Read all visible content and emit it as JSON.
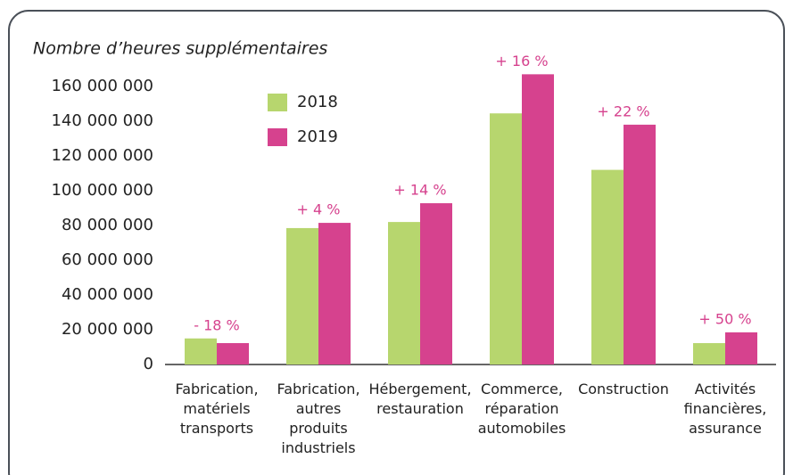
{
  "chart_data": {
    "type": "bar",
    "title": "Nombre d’heures supplémentaires",
    "categories": [
      "Fabrication, matériels transports",
      "Fabrication, autres produits industriels",
      "Hébergement, restauration",
      "Commerce, réparation automobiles",
      "Construction",
      "Activités financières, assurance"
    ],
    "series": [
      {
        "name": "2018",
        "color": "#b7d66e",
        "values": [
          15000000,
          78500000,
          82000000,
          144500000,
          112000000,
          12300000
        ]
      },
      {
        "name": "2019",
        "color": "#d6428e",
        "values": [
          12300000,
          81500000,
          92800000,
          167000000,
          138000000,
          18500000
        ]
      }
    ],
    "annotations": [
      "- 18 %",
      "+ 4 %",
      "+ 14 %",
      "+ 16 %",
      "+ 22 %",
      "+ 50 %"
    ],
    "ylim": [
      0,
      160000000
    ],
    "yticks": [
      0,
      {
        "value": 20000000,
        "label": "20 000 000"
      },
      {
        "value": 40000000,
        "label": "40 000 000"
      },
      {
        "value": 60000000,
        "label": "60 000 000"
      },
      {
        "value": 80000000,
        "label": "80 000 000"
      },
      {
        "value": 100000000,
        "label": "100 000 000"
      },
      {
        "value": 120000000,
        "label": "120 000 000"
      },
      {
        "value": 140000000,
        "label": "140 000 000"
      },
      {
        "value": 160000000,
        "label": "160 000 000"
      }
    ],
    "grid": false,
    "legend": "top-left"
  }
}
